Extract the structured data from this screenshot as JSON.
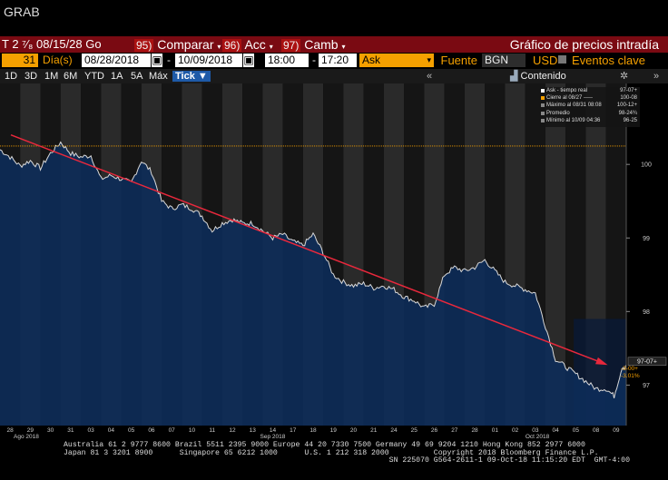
{
  "ticker": "GRAB",
  "toolbar": {
    "security_prefix": "T 2 ⁷⁄₈ 08/15/28 Go",
    "compare_num": "95)",
    "compare": "Comparar",
    "acc_num": "96)",
    "acc": "Acc",
    "camb_num": "97)",
    "camb": "Camb",
    "title": "Gráfico de precios intradía"
  },
  "settings": {
    "days_value": "31",
    "days_label": "Día(s)",
    "start_date": "08/28/2018",
    "end_date": "10/09/2018",
    "start_time": "18:00",
    "end_time": "17:20",
    "field": "Ask",
    "source_label": "Fuente",
    "source": "BGN",
    "currency": "USD",
    "events_label": "Eventos clave"
  },
  "periods": [
    "1D",
    "3D",
    "1M",
    "6M",
    "YTD",
    "1A",
    "5A",
    "Máx"
  ],
  "tick_label": "Tick",
  "content_label": "Contenido",
  "colors": {
    "accent_red": "#7a0a12",
    "amber": "#f5a000",
    "trend": "#e8283c",
    "fill": "#0d2c5a"
  },
  "legend": [
    {
      "label": "Ask - tiempo real",
      "value": "97-07+",
      "color": "#ffffff"
    },
    {
      "label": "Cierre al 08/27 -----",
      "value": "100-08",
      "color": "#f5a000"
    },
    {
      "label": "Máximo al 08/31 08:08",
      "value": "100-12+",
      "color": "#888888"
    },
    {
      "label": "Promedio",
      "value": "98-24¾",
      "color": "#888888"
    },
    {
      "label": "Mínimo al 10/09 04:36",
      "value": "96-25",
      "color": "#888888"
    }
  ],
  "chart_data": {
    "type": "line",
    "x": [
      "28",
      "29",
      "30",
      "31",
      "03",
      "04",
      "05",
      "06",
      "07",
      "10",
      "11",
      "12",
      "13",
      "14",
      "17",
      "18",
      "19",
      "20",
      "21",
      "24",
      "25",
      "26",
      "27",
      "28",
      "01",
      "02",
      "03",
      "04",
      "05",
      "08",
      "09"
    ],
    "month_labels": [
      "Ago 2018",
      "Sep 2018",
      "Oct 2018"
    ],
    "y_ticks": [
      "100",
      "99",
      "98",
      "97"
    ],
    "ylim": [
      96.45,
      101.1
    ],
    "previous_close": 100.25,
    "last_value": 97.23,
    "last_label": "97-07+",
    "change_label": "-3-00+",
    "change_pct": "-3.01%",
    "series": [
      {
        "values": [
          [
            0,
            100.2
          ],
          [
            0.5,
            100.1
          ],
          [
            1,
            99.98
          ],
          [
            1.5,
            100.05
          ],
          [
            2,
            99.95
          ],
          [
            2.5,
            100.15
          ],
          [
            3,
            100.3
          ],
          [
            3.5,
            100.15
          ],
          [
            4,
            100.1
          ],
          [
            4.5,
            100.12
          ],
          [
            5,
            99.8
          ],
          [
            5.5,
            99.85
          ],
          [
            6,
            99.8
          ],
          [
            6.5,
            99.75
          ],
          [
            7,
            100.05
          ],
          [
            7.5,
            99.9
          ],
          [
            8,
            99.5
          ],
          [
            8.5,
            99.4
          ],
          [
            9,
            99.45
          ],
          [
            9.5,
            99.4
          ],
          [
            10,
            99.3
          ],
          [
            10.5,
            99.1
          ],
          [
            11,
            99.2
          ],
          [
            11.5,
            99.25
          ],
          [
            12,
            99.2
          ],
          [
            12.5,
            99.2
          ],
          [
            13,
            99.1
          ],
          [
            13.5,
            99.0
          ],
          [
            14,
            99.05
          ],
          [
            14.5,
            98.95
          ],
          [
            15,
            98.9
          ],
          [
            15.5,
            99.05
          ],
          [
            16,
            98.8
          ],
          [
            16.5,
            98.5
          ],
          [
            17,
            98.4
          ],
          [
            17.5,
            98.35
          ],
          [
            18,
            98.38
          ],
          [
            18.5,
            98.32
          ],
          [
            19,
            98.35
          ],
          [
            19.5,
            98.3
          ],
          [
            20,
            98.2
          ],
          [
            20.5,
            98.15
          ],
          [
            21,
            98.05
          ],
          [
            21.5,
            98.1
          ],
          [
            22,
            98.5
          ],
          [
            22.5,
            98.6
          ],
          [
            23,
            98.55
          ],
          [
            23.5,
            98.6
          ],
          [
            24,
            98.7
          ],
          [
            24.5,
            98.55
          ],
          [
            25,
            98.4
          ],
          [
            25.5,
            98.35
          ],
          [
            26,
            98.3
          ],
          [
            26.5,
            98.25
          ],
          [
            27,
            97.8
          ],
          [
            27.5,
            97.35
          ],
          [
            28,
            97.25
          ],
          [
            28.5,
            97.15
          ],
          [
            29,
            97.05
          ],
          [
            29.5,
            96.95
          ],
          [
            30,
            96.95
          ],
          [
            30.4,
            96.85
          ],
          [
            30.8,
            97.25
          ],
          [
            31.0,
            97.23
          ]
        ]
      },
      {
        "name": "",
        "trend": [
          [
            0,
            100.5
          ],
          [
            31,
            97.3
          ]
        ]
      }
    ]
  },
  "footer": {
    "line1": "Australia 61 2 9777 8600 Brazil 5511 2395 9000 Europe 44 20 7330 7500 Germany 49 69 9204 1210 Hong Kong 852 2977 6000",
    "line2": "Japan 81 3 3201 8900      Singapore 65 6212 1000      U.S. 1 212 318 2000          Copyright 2018 Bloomberg Finance L.P.",
    "line3": "                                                                         SN 225070 G564-2611-1 09-Oct-18 11:15:20 EDT  GMT-4:00"
  }
}
